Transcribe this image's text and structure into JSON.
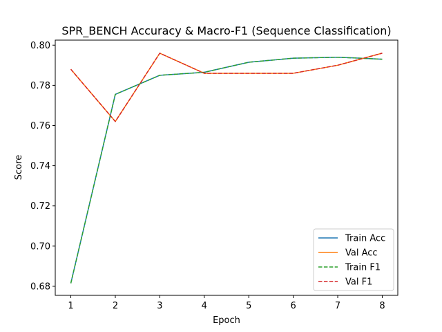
{
  "chart_data": {
    "type": "line",
    "title": "SPR_BENCH Accuracy & Macro-F1 (Sequence Classification)",
    "xlabel": "Epoch",
    "ylabel": "Score",
    "x": [
      1,
      2,
      3,
      4,
      5,
      6,
      7,
      8
    ],
    "xlim": [
      0.65,
      8.35
    ],
    "ylim": [
      0.6755,
      0.8025
    ],
    "yticks": [
      0.68,
      0.7,
      0.72,
      0.74,
      0.76,
      0.78,
      0.8
    ],
    "ytick_labels": [
      "0.68",
      "0.70",
      "0.72",
      "0.74",
      "0.76",
      "0.78",
      "0.80"
    ],
    "xtick_labels": [
      "1",
      "2",
      "3",
      "4",
      "5",
      "6",
      "7",
      "8"
    ],
    "grid": false,
    "legend_position": "lower-right",
    "series": [
      {
        "name": "Train Acc",
        "values": [
          0.6815,
          0.7755,
          0.785,
          0.7865,
          0.7915,
          0.7935,
          0.794,
          0.793
        ],
        "color": "#1f77b4",
        "style": "solid"
      },
      {
        "name": "Val Acc",
        "values": [
          0.788,
          0.762,
          0.796,
          0.786,
          0.786,
          0.786,
          0.79,
          0.796
        ],
        "color": "#ff7f0e",
        "style": "solid"
      },
      {
        "name": "Train F1",
        "values": [
          0.6815,
          0.7755,
          0.785,
          0.7865,
          0.7915,
          0.7935,
          0.794,
          0.793
        ],
        "color": "#2ca02c",
        "style": "dashed"
      },
      {
        "name": "Val F1",
        "values": [
          0.788,
          0.762,
          0.796,
          0.786,
          0.786,
          0.786,
          0.79,
          0.796
        ],
        "color": "#d62728",
        "style": "dashed"
      }
    ]
  }
}
